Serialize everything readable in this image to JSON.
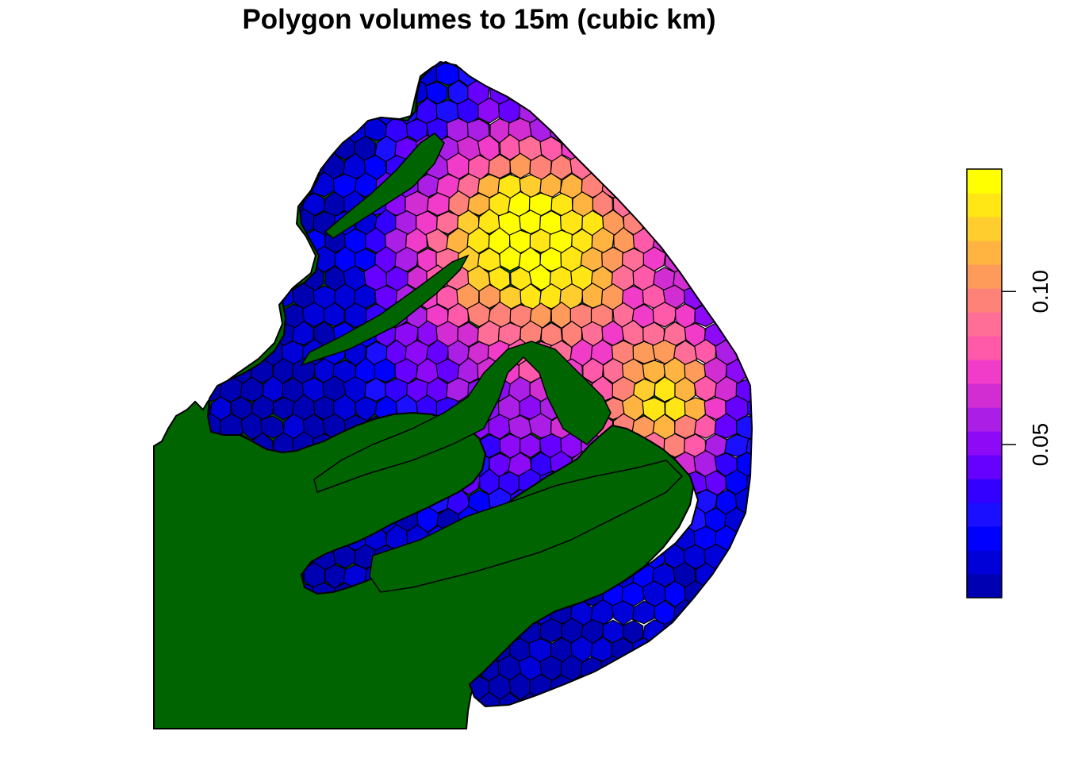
{
  "title": "Polygon volumes to 15m (cubic km)",
  "map": {
    "land_color": "#006400",
    "cell_border_color": "#000000",
    "palette": [
      "#0000B3",
      "#0000D9",
      "#0000FF",
      "#1A0FFF",
      "#3300FF",
      "#6600FF",
      "#8C0AF5",
      "#AA1EE6",
      "#D22DD2",
      "#F03CC8",
      "#FF5AAA",
      "#FF6E96",
      "#FF8278",
      "#FF9B5A",
      "#FFB441",
      "#FFCD2D",
      "#FFE614",
      "#FFFF00"
    ]
  },
  "legend": {
    "min": 0.0,
    "max": 0.14,
    "ticks": [
      {
        "value": 0.05,
        "label": "0.05"
      },
      {
        "value": 0.1,
        "label": "0.10"
      }
    ],
    "colors": [
      "#0000B3",
      "#0000D9",
      "#0000FF",
      "#1A0FFF",
      "#3300FF",
      "#6600FF",
      "#8C0AF5",
      "#AA1EE6",
      "#D22DD2",
      "#F03CC8",
      "#FF5AAA",
      "#FF6E96",
      "#FF8278",
      "#FF9B5A",
      "#FFB441",
      "#FFCD2D",
      "#FFE614",
      "#FFFF00"
    ]
  }
}
